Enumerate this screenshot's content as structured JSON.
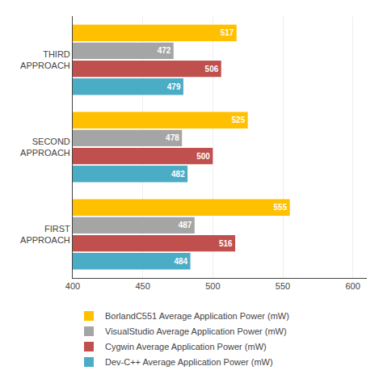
{
  "chart_data": {
    "type": "bar",
    "orientation": "horizontal",
    "categories": [
      "FIRST\nAPPROACH",
      "SECOND\nAPPROACH",
      "THIRD\nAPPROACH"
    ],
    "series": [
      {
        "name": "BorlandC551 Average Application Power (mW)",
        "color": "#FFC000",
        "values": [
          555,
          525,
          517
        ]
      },
      {
        "name": "VisualStudio Average Application Power (mW)",
        "color": "#A5A5A5",
        "values": [
          487,
          478,
          472
        ]
      },
      {
        "name": "Cygwin Average Application Power (mW)",
        "color": "#C0504D",
        "values": [
          516,
          500,
          506
        ]
      },
      {
        "name": "Dev-C++ Average Application Power (mW)",
        "color": "#4BACC6",
        "values": [
          484,
          482,
          479
        ]
      }
    ],
    "xlim": [
      400,
      610
    ],
    "xticks": [
      400,
      450,
      500,
      550,
      600
    ],
    "grid": true,
    "data_labels": true,
    "legend": "bottom"
  }
}
